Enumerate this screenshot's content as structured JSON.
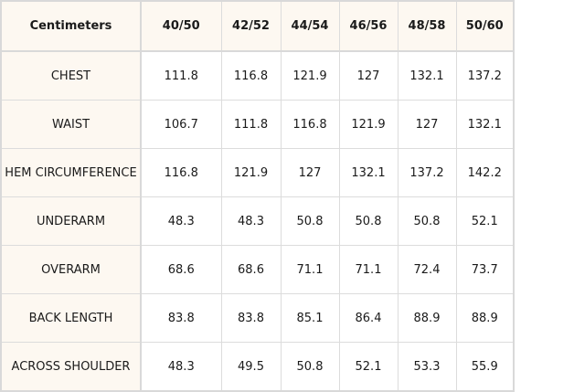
{
  "table": {
    "corner_label": "Centimeters",
    "columns": [
      "40/50",
      "42/52",
      "44/54",
      "46/56",
      "48/58",
      "50/60"
    ],
    "rows": [
      {
        "label": "CHEST",
        "values": [
          "111.8",
          "116.8",
          "121.9",
          "127",
          "132.1",
          "137.2"
        ]
      },
      {
        "label": "WAIST",
        "values": [
          "106.7",
          "111.8",
          "116.8",
          "121.9",
          "127",
          "132.1"
        ]
      },
      {
        "label": "HEM CIRCUMFERENCE",
        "values": [
          "116.8",
          "121.9",
          "127",
          "132.1",
          "137.2",
          "142.2"
        ]
      },
      {
        "label": "UNDERARM",
        "values": [
          "48.3",
          "48.3",
          "50.8",
          "50.8",
          "50.8",
          "52.1"
        ]
      },
      {
        "label": "OVERARM",
        "values": [
          "68.6",
          "68.6",
          "71.1",
          "71.1",
          "72.4",
          "73.7"
        ]
      },
      {
        "label": "BACK LENGTH",
        "values": [
          "83.8",
          "83.8",
          "85.1",
          "86.4",
          "88.9",
          "88.9"
        ]
      },
      {
        "label": "ACROSS SHOULDER",
        "values": [
          "48.3",
          "49.5",
          "50.8",
          "52.1",
          "53.3",
          "55.9"
        ]
      }
    ]
  },
  "colors": {
    "header_background": "#fdf8f1",
    "cell_background": "#ffffff",
    "border": "#dcdcdc",
    "text": "#1a1a1a"
  }
}
